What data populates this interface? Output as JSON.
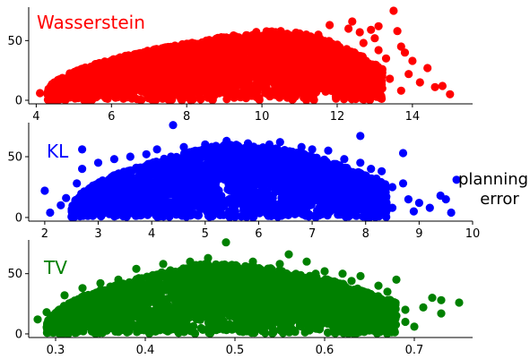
{
  "side_label": [
    "planning",
    "error"
  ],
  "chart_data": [
    {
      "type": "scatter",
      "title": "Wasserstein",
      "color": "#ff0000",
      "xlim": [
        3.8,
        15.6
      ],
      "ylim": [
        -3,
        78
      ],
      "xticks": [
        4,
        6,
        8,
        10,
        12,
        14
      ],
      "yticks": [
        0,
        50
      ],
      "cloud": {
        "xmin": 4.3,
        "xmax": 13.2,
        "peak_x": 10.3,
        "peak_y": 58
      },
      "points": [
        [
          4.1,
          6
        ],
        [
          4.4,
          5
        ],
        [
          4.7,
          8
        ],
        [
          5.0,
          12
        ],
        [
          5.4,
          16
        ],
        [
          5.9,
          21
        ],
        [
          6.3,
          26
        ],
        [
          6.8,
          31
        ],
        [
          7.3,
          35
        ],
        [
          7.8,
          38
        ],
        [
          8.3,
          43
        ],
        [
          8.9,
          47
        ],
        [
          9.3,
          52
        ],
        [
          9.9,
          54
        ],
        [
          10.5,
          58
        ],
        [
          11.0,
          56
        ],
        [
          11.5,
          55
        ],
        [
          11.8,
          63
        ],
        [
          12.4,
          66
        ],
        [
          12.9,
          59
        ],
        [
          13.0,
          52
        ],
        [
          12.7,
          48
        ],
        [
          12.6,
          57
        ],
        [
          13.5,
          75
        ],
        [
          13.1,
          42
        ],
        [
          13.3,
          35
        ],
        [
          13.6,
          58
        ],
        [
          13.7,
          45
        ],
        [
          13.8,
          40
        ],
        [
          14.0,
          33
        ],
        [
          13.9,
          22
        ],
        [
          13.4,
          18
        ],
        [
          13.2,
          10
        ],
        [
          12.8,
          25
        ],
        [
          14.4,
          27
        ],
        [
          14.6,
          11
        ],
        [
          14.8,
          12
        ],
        [
          15.0,
          5
        ],
        [
          13.7,
          8
        ],
        [
          14.2,
          15
        ],
        [
          13.1,
          62
        ],
        [
          12.3,
          60
        ]
      ]
    },
    {
      "type": "scatter",
      "title": "KL",
      "color": "#0000ff",
      "xlim": [
        1.7,
        10.0
      ],
      "ylim": [
        -3,
        78
      ],
      "xticks": [
        2,
        3,
        4,
        5,
        6,
        7,
        8,
        9,
        10
      ],
      "yticks": [
        0,
        50
      ],
      "cloud": {
        "xmin": 2.5,
        "xmax": 8.4,
        "peak_x": 5.4,
        "peak_y": 60
      },
      "points": [
        [
          2.0,
          22
        ],
        [
          2.1,
          4
        ],
        [
          2.3,
          10
        ],
        [
          2.4,
          16
        ],
        [
          2.6,
          28
        ],
        [
          2.7,
          40
        ],
        [
          2.7,
          56
        ],
        [
          3.0,
          45
        ],
        [
          3.3,
          48
        ],
        [
          3.6,
          50
        ],
        [
          3.9,
          52
        ],
        [
          4.1,
          56
        ],
        [
          4.4,
          76
        ],
        [
          4.6,
          58
        ],
        [
          5.0,
          60
        ],
        [
          5.4,
          63
        ],
        [
          5.8,
          61
        ],
        [
          6.2,
          60
        ],
        [
          6.4,
          62
        ],
        [
          6.8,
          58
        ],
        [
          7.0,
          56
        ],
        [
          7.3,
          55
        ],
        [
          7.6,
          48
        ],
        [
          7.9,
          45
        ],
        [
          7.9,
          67
        ],
        [
          8.1,
          40
        ],
        [
          8.2,
          32
        ],
        [
          8.3,
          38
        ],
        [
          8.5,
          25
        ],
        [
          8.7,
          28
        ],
        [
          8.7,
          53
        ],
        [
          8.8,
          15
        ],
        [
          8.9,
          5
        ],
        [
          9.0,
          12
        ],
        [
          9.2,
          8
        ],
        [
          9.4,
          18
        ],
        [
          9.5,
          15
        ],
        [
          9.6,
          4
        ],
        [
          9.7,
          31
        ],
        [
          8.5,
          8
        ],
        [
          8.1,
          3
        ]
      ]
    },
    {
      "type": "scatter",
      "title": "TV",
      "color": "#008000",
      "xlim": [
        0.27,
        0.765
      ],
      "ylim": [
        -3,
        78
      ],
      "xticks": [
        0.3,
        0.4,
        0.5,
        0.6,
        0.7
      ],
      "yticks": [
        0,
        50
      ],
      "cloud": {
        "xmin": 0.29,
        "xmax": 0.68,
        "peak_x": 0.47,
        "peak_y": 58
      },
      "points": [
        [
          0.28,
          12
        ],
        [
          0.29,
          18
        ],
        [
          0.3,
          8
        ],
        [
          0.31,
          32
        ],
        [
          0.33,
          38
        ],
        [
          0.35,
          42
        ],
        [
          0.37,
          45
        ],
        [
          0.39,
          54
        ],
        [
          0.42,
          58
        ],
        [
          0.45,
          60
        ],
        [
          0.47,
          63
        ],
        [
          0.49,
          76
        ],
        [
          0.52,
          60
        ],
        [
          0.55,
          58
        ],
        [
          0.56,
          66
        ],
        [
          0.58,
          60
        ],
        [
          0.59,
          50
        ],
        [
          0.6,
          52
        ],
        [
          0.62,
          50
        ],
        [
          0.63,
          44
        ],
        [
          0.64,
          48
        ],
        [
          0.66,
          40
        ],
        [
          0.67,
          35
        ],
        [
          0.68,
          45
        ],
        [
          0.67,
          28
        ],
        [
          0.69,
          20
        ],
        [
          0.69,
          10
        ],
        [
          0.7,
          6
        ],
        [
          0.71,
          22
        ],
        [
          0.72,
          30
        ],
        [
          0.73,
          17
        ],
        [
          0.73,
          28
        ],
        [
          0.75,
          26
        ],
        [
          0.68,
          15
        ],
        [
          0.67,
          8
        ],
        [
          0.65,
          30
        ]
      ]
    }
  ]
}
